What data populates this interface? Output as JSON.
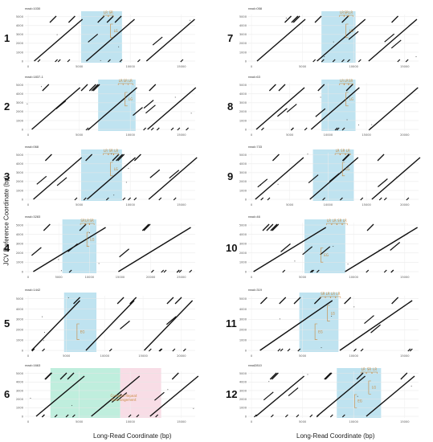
{
  "axis_titles": {
    "y": "JCV Reference Coordinate (bp)",
    "x_left": "Long-Read Coordinate (bp)",
    "x_right": "Long-Read Coordinate (bp)"
  },
  "colors": {
    "highlight_blue": "#bfe3f0",
    "highlight_green": "#bfeedd",
    "highlight_pink": "#f8dde6",
    "annotation": "#c8863a",
    "dots": "#111111"
  },
  "chart_data": [
    {
      "type": "scatter",
      "panel": "1",
      "read": "read=1030",
      "xticks": [
        "0",
        "5000",
        "10000",
        "15000"
      ],
      "yticks": [
        "0",
        "1000",
        "2000",
        "3000",
        "4000",
        "5000"
      ],
      "annotations": [
        "LR",
        "SR",
        "LG"
      ]
    },
    {
      "type": "scatter",
      "panel": "2",
      "read": "read=1837-1",
      "xticks": [
        "0",
        "5000",
        "10000",
        "15000"
      ],
      "yticks": [
        "0",
        "1000",
        "2000",
        "3000",
        "4000",
        "5000"
      ],
      "annotations": [
        "LR",
        "SR",
        "LR",
        "LG"
      ]
    },
    {
      "type": "scatter",
      "panel": "3",
      "read": "read=068",
      "xticks": [
        "0",
        "5000",
        "10000",
        "15000"
      ],
      "yticks": [
        "0",
        "1000",
        "2000",
        "3000",
        "4000",
        "5000"
      ],
      "annotations": [
        "LR",
        "SR",
        "LR",
        "LG"
      ]
    },
    {
      "type": "scatter",
      "panel": "4",
      "read": "read=3283",
      "xticks": [
        "0",
        "5000",
        "10000",
        "15000",
        "20000",
        "25000"
      ],
      "yticks": [
        "0",
        "1000",
        "2000",
        "3000",
        "4000",
        "5000"
      ],
      "annotations": [
        "SR",
        "LR",
        "SR",
        "LG"
      ]
    },
    {
      "type": "scatter",
      "panel": "5",
      "read": "read=1442",
      "xticks": [
        "0",
        "5000",
        "10000",
        "15000",
        "20000"
      ],
      "yticks": [
        "0",
        "1000",
        "2000",
        "3000",
        "4000",
        "5000"
      ],
      "annotations": [
        "EG"
      ]
    },
    {
      "type": "scatter",
      "panel": "6",
      "read": "read=1663",
      "xticks": [
        "0",
        "5000",
        "10000",
        "15000"
      ],
      "yticks": [
        "0",
        "1000",
        "2000",
        "3000",
        "4000",
        "5000"
      ],
      "annotations": [
        "Complex Repeat",
        "Rearrangement"
      ]
    },
    {
      "type": "scatter",
      "panel": "7",
      "read": "read=058",
      "xticks": [
        "0",
        "5000",
        "10000",
        "15000"
      ],
      "yticks": [
        "0",
        "1000",
        "2000",
        "3000",
        "4000",
        "5000"
      ],
      "annotations": [
        "LR",
        "SR",
        "LR",
        "LG"
      ]
    },
    {
      "type": "scatter",
      "panel": "8",
      "read": "read=63",
      "xticks": [
        "0",
        "5000",
        "10000",
        "15000",
        "20000"
      ],
      "yticks": [
        "0",
        "1000",
        "2000",
        "3000",
        "4000",
        "5000"
      ],
      "annotations": [
        "LR",
        "LR",
        "SR",
        "LG"
      ]
    },
    {
      "type": "scatter",
      "panel": "9",
      "read": "read=733",
      "xticks": [
        "0",
        "5000",
        "10000",
        "15000",
        "20000"
      ],
      "yticks": [
        "0",
        "1000",
        "2000",
        "3000",
        "4000",
        "5000"
      ],
      "annotations": [
        "LR",
        "SR",
        "LR",
        "LG"
      ]
    },
    {
      "type": "scatter",
      "panel": "10",
      "read": "read=46",
      "xticks": [
        "0",
        "5000",
        "10000",
        "15000"
      ],
      "yticks": [
        "0",
        "1000",
        "2000",
        "3000",
        "4000",
        "5000"
      ],
      "annotations": [
        "LR",
        "LR",
        "SR",
        "LR",
        "EG"
      ]
    },
    {
      "type": "scatter",
      "panel": "11",
      "read": "read=319",
      "xticks": [
        "0",
        "5000",
        "10000",
        "15000"
      ],
      "yticks": [
        "0",
        "1000",
        "2000",
        "3000",
        "4000",
        "5000"
      ],
      "annotations": [
        "SR",
        "LR",
        "LR",
        "LR",
        "LG",
        "EG"
      ]
    },
    {
      "type": "scatter",
      "panel": "12",
      "read": "read2810",
      "xticks": [
        "0",
        "5000",
        "10000",
        "15000"
      ],
      "yticks": [
        "0",
        "1000",
        "2000",
        "3000",
        "4000",
        "5000"
      ],
      "annotations": [
        "LR",
        "SR",
        "LR",
        "LG",
        "EG"
      ]
    }
  ]
}
